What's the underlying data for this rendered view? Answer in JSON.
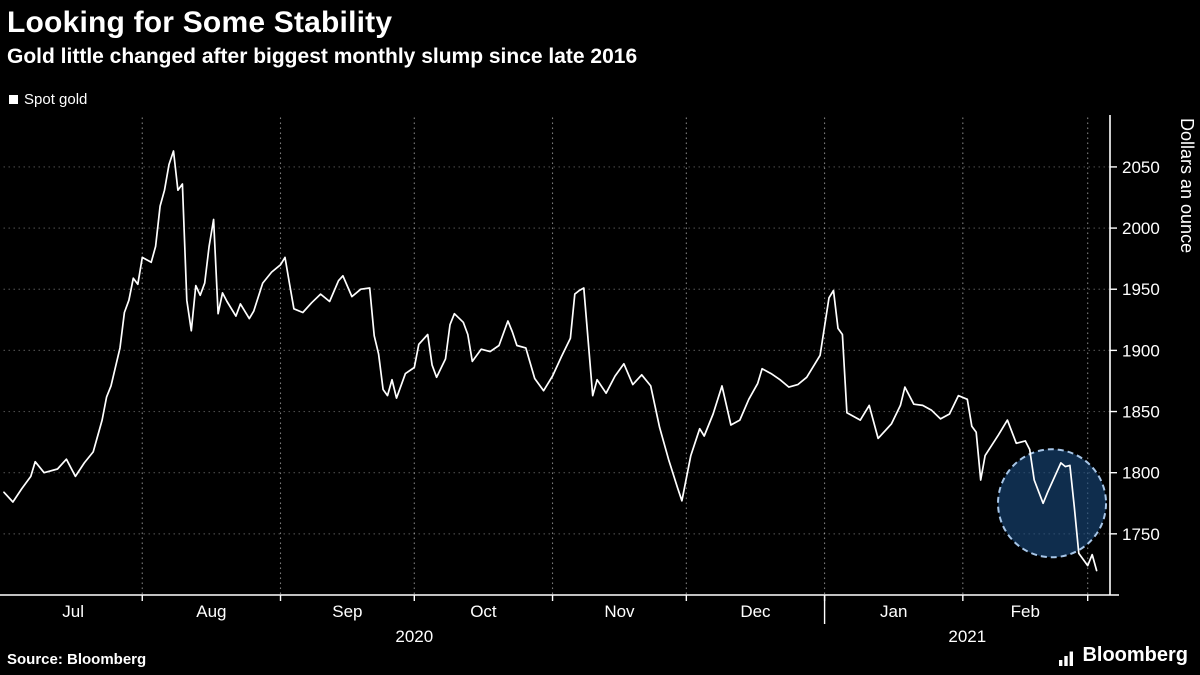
{
  "footer": {
    "source": "Source: Bloomberg",
    "brand": "Bloomberg"
  },
  "chart_data": {
    "type": "line",
    "title": "Looking for Some Stability",
    "subtitle": "Gold little changed after biggest monthly slump since late 2016",
    "ylabel": "Dollars an ounce",
    "xlabel": "",
    "x_unit": "days since Jul 1 2020",
    "x_domain": [
      0,
      248
    ],
    "y_domain": [
      1700,
      2090
    ],
    "y_ticks": [
      1750,
      1800,
      1850,
      1900,
      1950,
      2000,
      2050
    ],
    "x_gridline_days": [
      31,
      62,
      92,
      123,
      153,
      184,
      215,
      243
    ],
    "month_labels": [
      {
        "label": "Jul",
        "day": 15.5
      },
      {
        "label": "Aug",
        "day": 46.5
      },
      {
        "label": "Sep",
        "day": 77
      },
      {
        "label": "Oct",
        "day": 107.5
      },
      {
        "label": "Nov",
        "day": 138
      },
      {
        "label": "Dec",
        "day": 168.5
      },
      {
        "label": "Jan",
        "day": 199.5
      },
      {
        "label": "Feb",
        "day": 229
      }
    ],
    "year_labels": [
      {
        "label": "2020",
        "day": 92
      },
      {
        "label": "2021",
        "day": 216
      }
    ],
    "year_divider_day": 184,
    "grid": true,
    "legend_position": "top-left",
    "series": [
      {
        "name": "Spot gold",
        "color": "#ffffff",
        "points": [
          [
            0,
            1784
          ],
          [
            2,
            1776
          ],
          [
            4,
            1787
          ],
          [
            6,
            1797
          ],
          [
            7,
            1809
          ],
          [
            9,
            1800
          ],
          [
            12,
            1803
          ],
          [
            14,
            1811
          ],
          [
            16,
            1797
          ],
          [
            18,
            1808
          ],
          [
            20,
            1817
          ],
          [
            22,
            1843
          ],
          [
            23,
            1862
          ],
          [
            24,
            1871
          ],
          [
            26,
            1902
          ],
          [
            27,
            1931
          ],
          [
            28,
            1941
          ],
          [
            29,
            1959
          ],
          [
            30,
            1954
          ],
          [
            31,
            1976
          ],
          [
            33,
            1972
          ],
          [
            34,
            1985
          ],
          [
            35,
            2018
          ],
          [
            36,
            2031
          ],
          [
            37,
            2052
          ],
          [
            38,
            2063
          ],
          [
            39,
            2031
          ],
          [
            40,
            2036
          ],
          [
            41,
            1941
          ],
          [
            42,
            1916
          ],
          [
            43,
            1953
          ],
          [
            44,
            1945
          ],
          [
            45,
            1955
          ],
          [
            46,
            1985
          ],
          [
            47,
            2007
          ],
          [
            48,
            1930
          ],
          [
            49,
            1947
          ],
          [
            50,
            1940
          ],
          [
            52,
            1928
          ],
          [
            53,
            1938
          ],
          [
            55,
            1926
          ],
          [
            56,
            1932
          ],
          [
            58,
            1955
          ],
          [
            60,
            1964
          ],
          [
            62,
            1970
          ],
          [
            63,
            1976
          ],
          [
            64,
            1955
          ],
          [
            65,
            1934
          ],
          [
            67,
            1931
          ],
          [
            69,
            1939
          ],
          [
            71,
            1946
          ],
          [
            73,
            1940
          ],
          [
            75,
            1957
          ],
          [
            76,
            1961
          ],
          [
            78,
            1944
          ],
          [
            80,
            1950
          ],
          [
            82,
            1951
          ],
          [
            83,
            1912
          ],
          [
            84,
            1897
          ],
          [
            85,
            1868
          ],
          [
            86,
            1863
          ],
          [
            87,
            1876
          ],
          [
            88,
            1861
          ],
          [
            90,
            1881
          ],
          [
            92,
            1886
          ],
          [
            93,
            1905
          ],
          [
            95,
            1913
          ],
          [
            96,
            1888
          ],
          [
            97,
            1878
          ],
          [
            99,
            1893
          ],
          [
            100,
            1921
          ],
          [
            101,
            1930
          ],
          [
            103,
            1923
          ],
          [
            104,
            1913
          ],
          [
            105,
            1891
          ],
          [
            107,
            1901
          ],
          [
            109,
            1899
          ],
          [
            111,
            1904
          ],
          [
            113,
            1924
          ],
          [
            114,
            1915
          ],
          [
            115,
            1904
          ],
          [
            117,
            1902
          ],
          [
            119,
            1877
          ],
          [
            121,
            1867
          ],
          [
            123,
            1879
          ],
          [
            125,
            1895
          ],
          [
            127,
            1910
          ],
          [
            128,
            1946
          ],
          [
            129,
            1949
          ],
          [
            130,
            1951
          ],
          [
            132,
            1863
          ],
          [
            133,
            1876
          ],
          [
            135,
            1865
          ],
          [
            137,
            1879
          ],
          [
            139,
            1889
          ],
          [
            141,
            1872
          ],
          [
            143,
            1880
          ],
          [
            145,
            1871
          ],
          [
            147,
            1837
          ],
          [
            149,
            1811
          ],
          [
            151,
            1788
          ],
          [
            152,
            1777
          ],
          [
            154,
            1814
          ],
          [
            156,
            1836
          ],
          [
            157,
            1830
          ],
          [
            159,
            1848
          ],
          [
            161,
            1871
          ],
          [
            163,
            1839
          ],
          [
            165,
            1843
          ],
          [
            167,
            1860
          ],
          [
            169,
            1873
          ],
          [
            170,
            1885
          ],
          [
            172,
            1881
          ],
          [
            174,
            1876
          ],
          [
            176,
            1870
          ],
          [
            178,
            1872
          ],
          [
            180,
            1878
          ],
          [
            182,
            1890
          ],
          [
            183,
            1896
          ],
          [
            185,
            1943
          ],
          [
            186,
            1949
          ],
          [
            187,
            1918
          ],
          [
            188,
            1913
          ],
          [
            189,
            1849
          ],
          [
            192,
            1843
          ],
          [
            194,
            1855
          ],
          [
            196,
            1828
          ],
          [
            199,
            1840
          ],
          [
            201,
            1855
          ],
          [
            202,
            1870
          ],
          [
            204,
            1856
          ],
          [
            206,
            1855
          ],
          [
            208,
            1851
          ],
          [
            210,
            1844
          ],
          [
            212,
            1848
          ],
          [
            214,
            1863
          ],
          [
            216,
            1860
          ],
          [
            217,
            1838
          ],
          [
            218,
            1833
          ],
          [
            219,
            1794
          ],
          [
            220,
            1814
          ],
          [
            223,
            1831
          ],
          [
            225,
            1843
          ],
          [
            227,
            1824
          ],
          [
            229,
            1826
          ],
          [
            230,
            1819
          ],
          [
            231,
            1794
          ],
          [
            233,
            1775
          ],
          [
            234,
            1784
          ],
          [
            237,
            1808
          ],
          [
            238,
            1805
          ],
          [
            239,
            1806
          ],
          [
            240,
            1772
          ],
          [
            241,
            1734
          ],
          [
            243,
            1724
          ],
          [
            244,
            1733
          ],
          [
            245,
            1720
          ]
        ]
      }
    ],
    "highlight": {
      "day": 235,
      "value": 1775,
      "radius_px": 54,
      "stroke": "#a7c6e8",
      "fill": "rgba(24,72,124,0.62)"
    }
  }
}
